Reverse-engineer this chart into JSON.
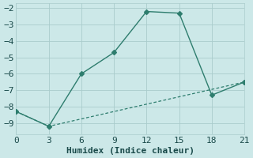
{
  "line1_x": [
    0,
    3,
    6,
    9,
    12,
    15,
    18,
    21
  ],
  "line1_y": [
    -8.3,
    -9.2,
    -6.0,
    -4.7,
    -2.2,
    -2.3,
    -7.3,
    -6.5
  ],
  "line2_x": [
    0,
    3,
    21
  ],
  "line2_y": [
    -8.3,
    -9.2,
    -6.5
  ],
  "line_color": "#2e7d6e",
  "marker": "D",
  "marker_size": 3,
  "xlabel": "Humidex (Indice chaleur)",
  "xlim": [
    0,
    21
  ],
  "ylim": [
    -9.7,
    -1.7
  ],
  "xticks": [
    0,
    3,
    6,
    9,
    12,
    15,
    18,
    21
  ],
  "yticks": [
    -9,
    -8,
    -7,
    -6,
    -5,
    -4,
    -3,
    -2
  ],
  "bg_color": "#cce8e8",
  "grid_color": "#aacccc",
  "font_color": "#1a4a4a",
  "font_size": 8
}
